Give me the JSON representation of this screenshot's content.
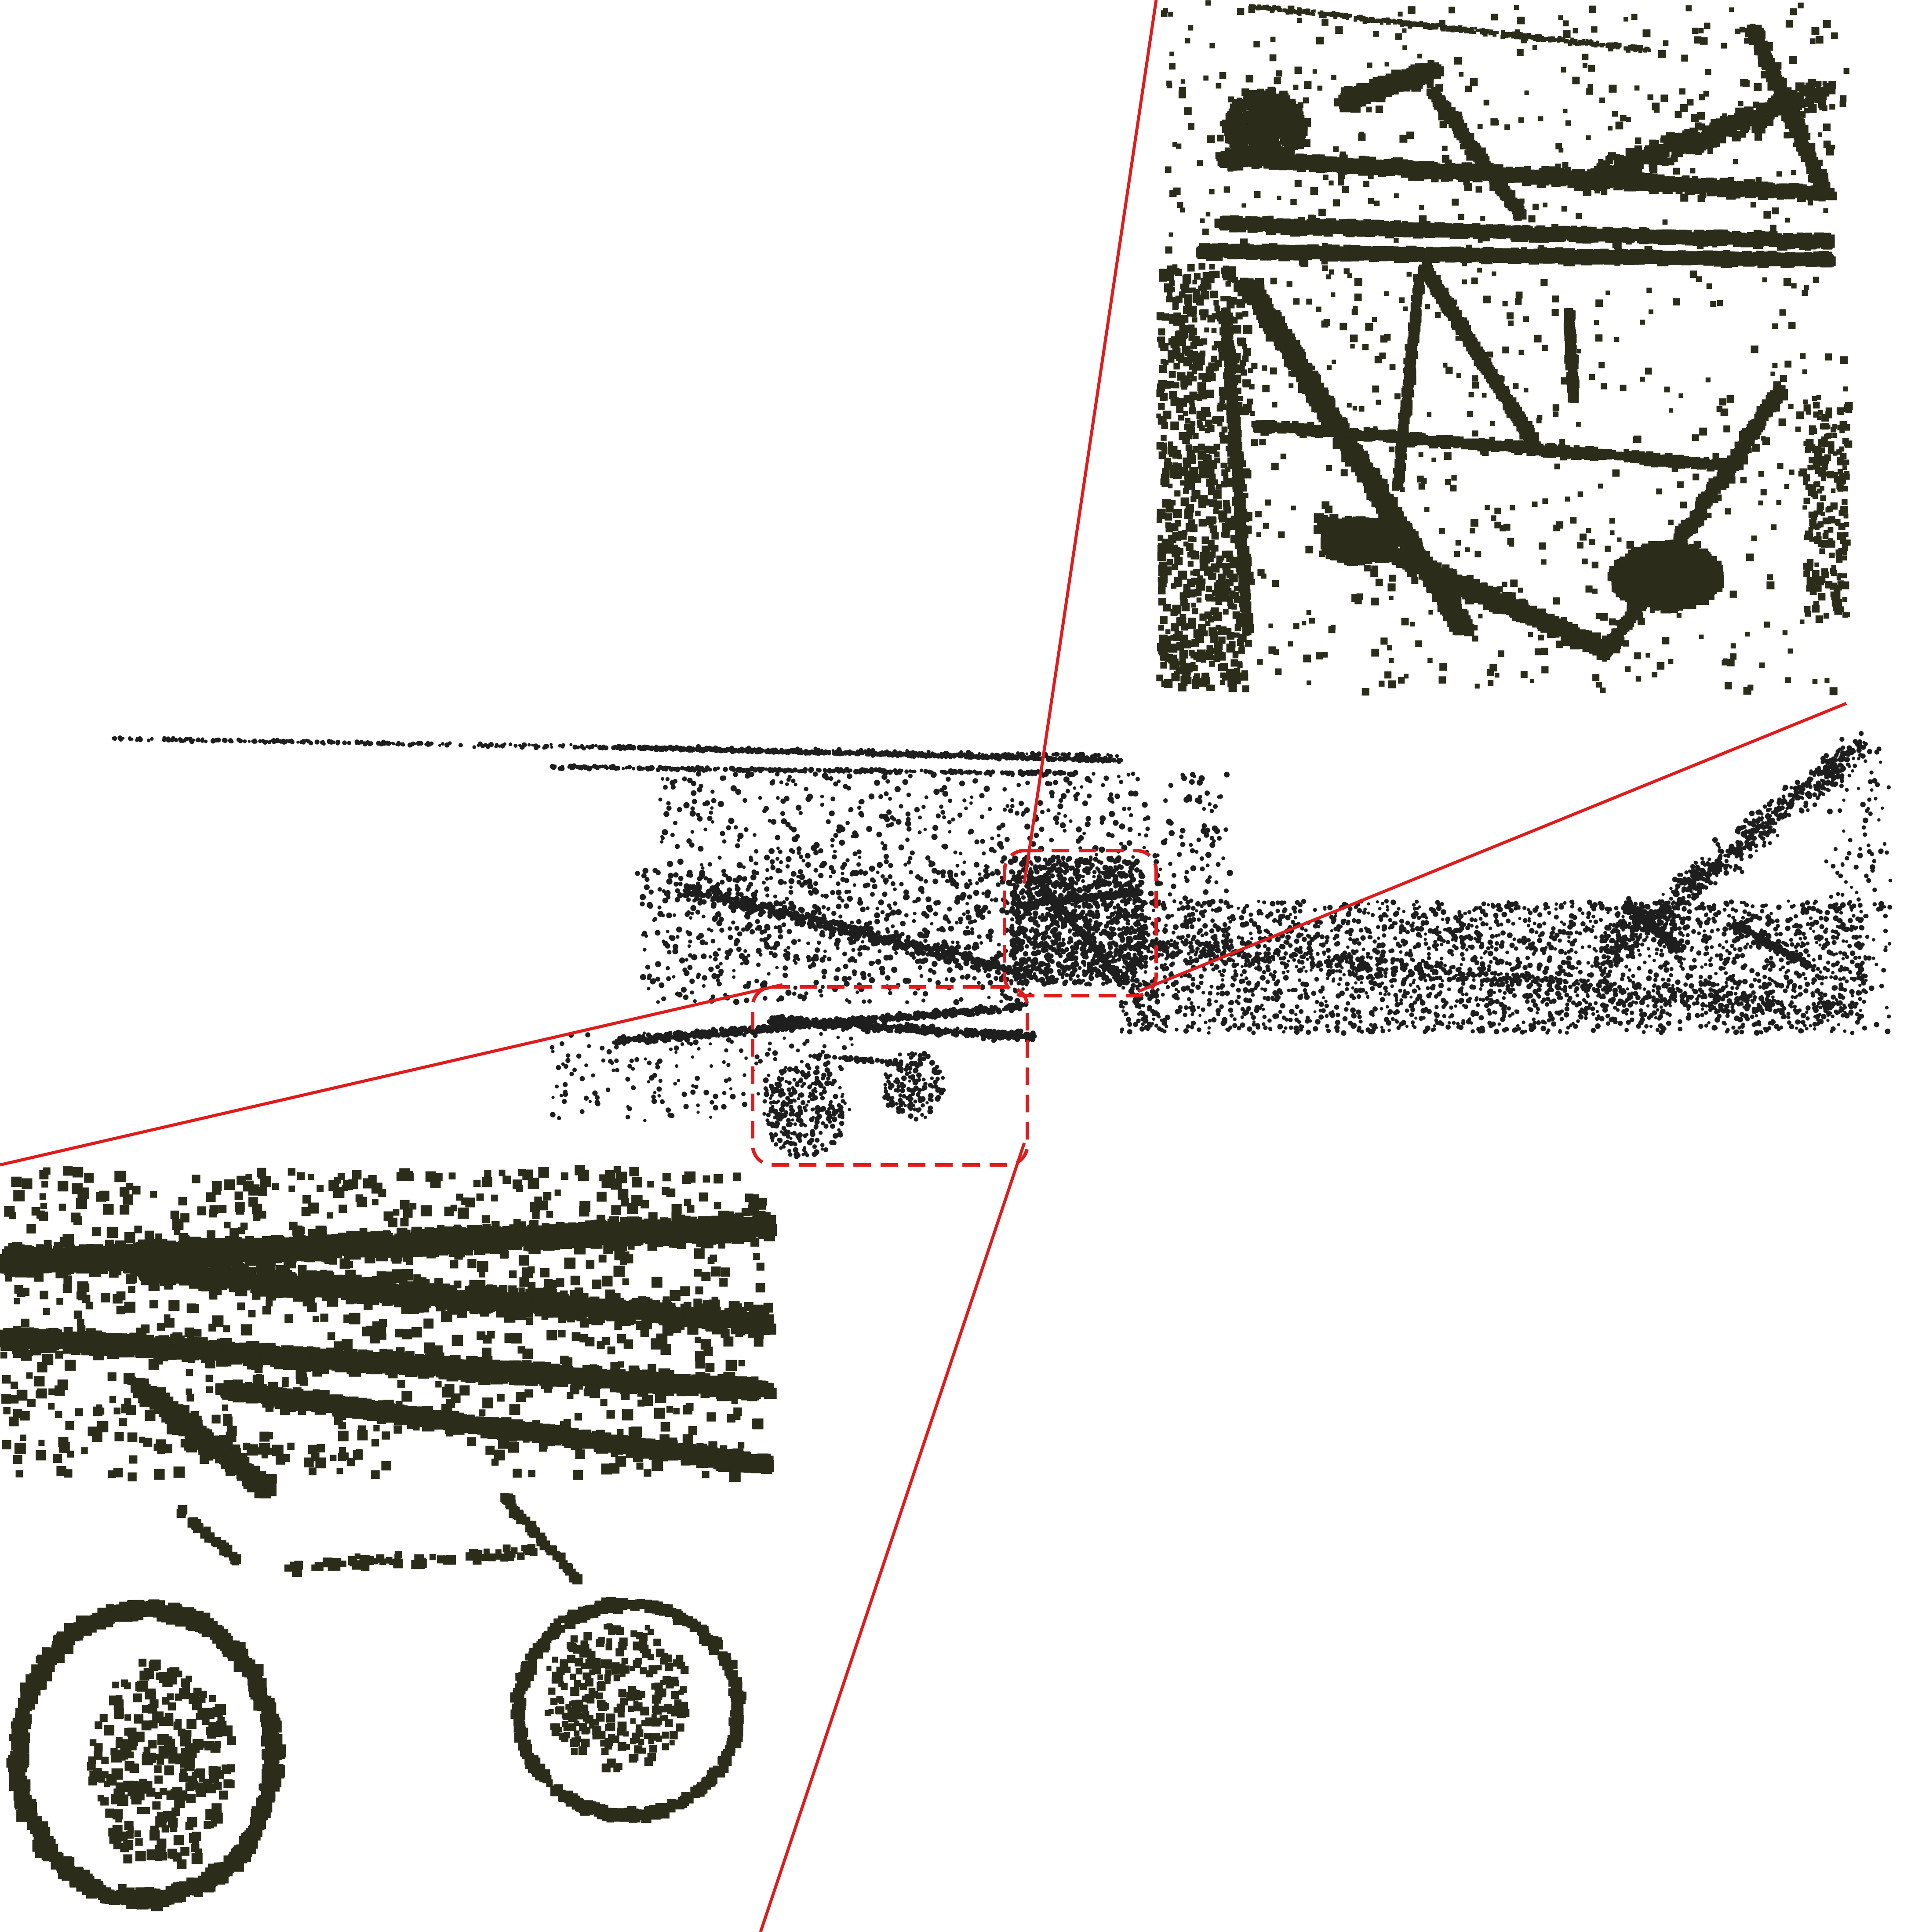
{
  "figure": {
    "kind": "point-cloud-zoom-illustration",
    "subject": "biplane-point-cloud",
    "colors": {
      "background": "#ffffff",
      "points_main": "#1e1e1e",
      "points_zoom": "#2c2c1a",
      "callout": "#e11b1b"
    },
    "callout_style": {
      "region_border": "dashed",
      "region_corners": "rounded"
    },
    "insets": [
      {
        "id": "zoom-top-right",
        "shows": "cockpit-and-strut-frame"
      },
      {
        "id": "zoom-bottom-left",
        "shows": "lower-wing-and-landing-gear-wheels"
      }
    ]
  }
}
